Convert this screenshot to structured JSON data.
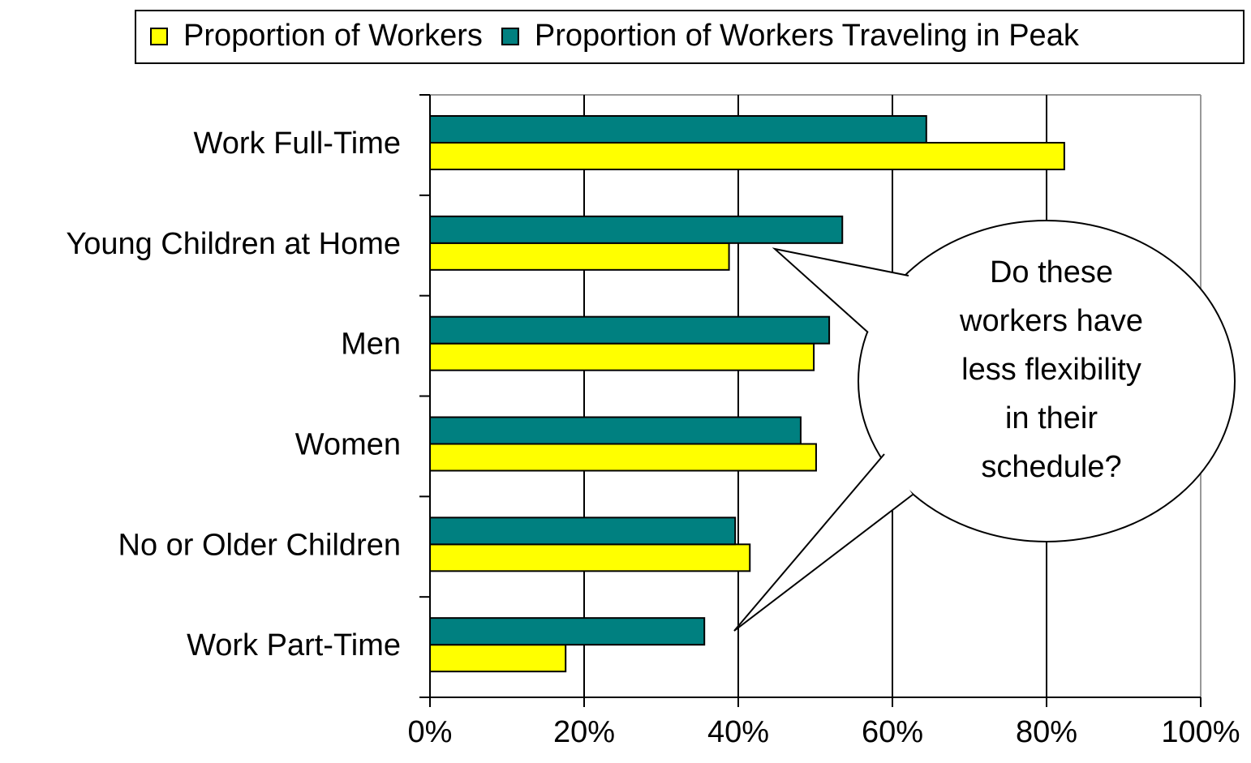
{
  "chart_data": {
    "type": "hbar",
    "categories": [
      "Work Full-Time",
      "Young Children at Home",
      "Men",
      "Women",
      "No or Older Children",
      "Work Part-Time"
    ],
    "series": [
      {
        "name": "Proportion of Workers",
        "color": "#ffff00",
        "values": [
          82.3,
          38.8,
          49.8,
          50.1,
          41.5,
          17.6
        ]
      },
      {
        "name": "Proportion of Workers Traveling in Peak",
        "color": "#008080",
        "values": [
          64.4,
          53.5,
          51.8,
          48.1,
          39.6,
          35.6
        ]
      }
    ],
    "xlim": [
      0,
      100
    ],
    "xticks": [
      {
        "value": 0,
        "label": "0%"
      },
      {
        "value": 20,
        "label": "20%"
      },
      {
        "value": 40,
        "label": "40%"
      },
      {
        "value": 60,
        "label": "60%"
      },
      {
        "value": 80,
        "label": "80%"
      },
      {
        "value": 100,
        "label": "100%"
      }
    ],
    "grid": true,
    "legend": "top",
    "annotation": [
      "Do these",
      "workers have",
      "less flexibility",
      "in their",
      "schedule?"
    ]
  }
}
